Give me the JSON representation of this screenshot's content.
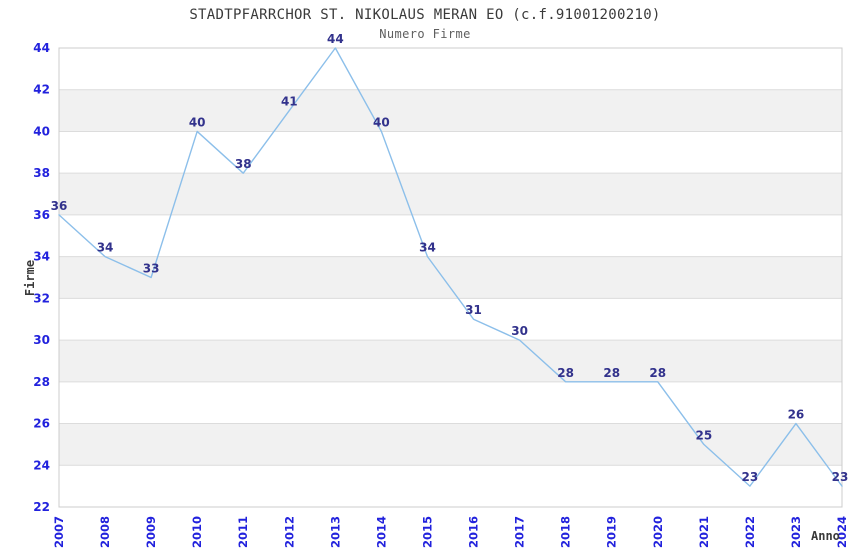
{
  "header": {
    "title": "STADTPFARRCHOR ST. NIKOLAUS MERAN EO (c.f.91001200210)",
    "subtitle": "Numero Firme"
  },
  "chart_data": {
    "type": "line",
    "title": "STADTPFARRCHOR ST. NIKOLAUS MERAN EO (c.f.91001200210)",
    "subtitle": "Numero Firme",
    "xlabel": "Anno",
    "ylabel": "Firme",
    "x": [
      2007,
      2008,
      2009,
      2010,
      2011,
      2012,
      2013,
      2014,
      2015,
      2016,
      2017,
      2018,
      2019,
      2020,
      2021,
      2022,
      2023,
      2024
    ],
    "values": [
      36,
      34,
      33,
      40,
      38,
      41,
      44,
      40,
      34,
      31,
      30,
      28,
      28,
      28,
      25,
      23,
      26,
      23
    ],
    "ylim": [
      22,
      44
    ],
    "ytick_step": 2,
    "grid": true,
    "alternating_bands": true,
    "legend_position": "none",
    "colors": {
      "line": "#8cbfea",
      "axis_tick_labels": "#2222dd",
      "data_labels": "#32328c",
      "band_gray": "#f1f1f1",
      "band_white": "#ffffff",
      "gridline": "#dcdcdc",
      "border": "#cccccc",
      "title": "#3a3a3a",
      "subtitle": "#5f5f5f"
    }
  }
}
